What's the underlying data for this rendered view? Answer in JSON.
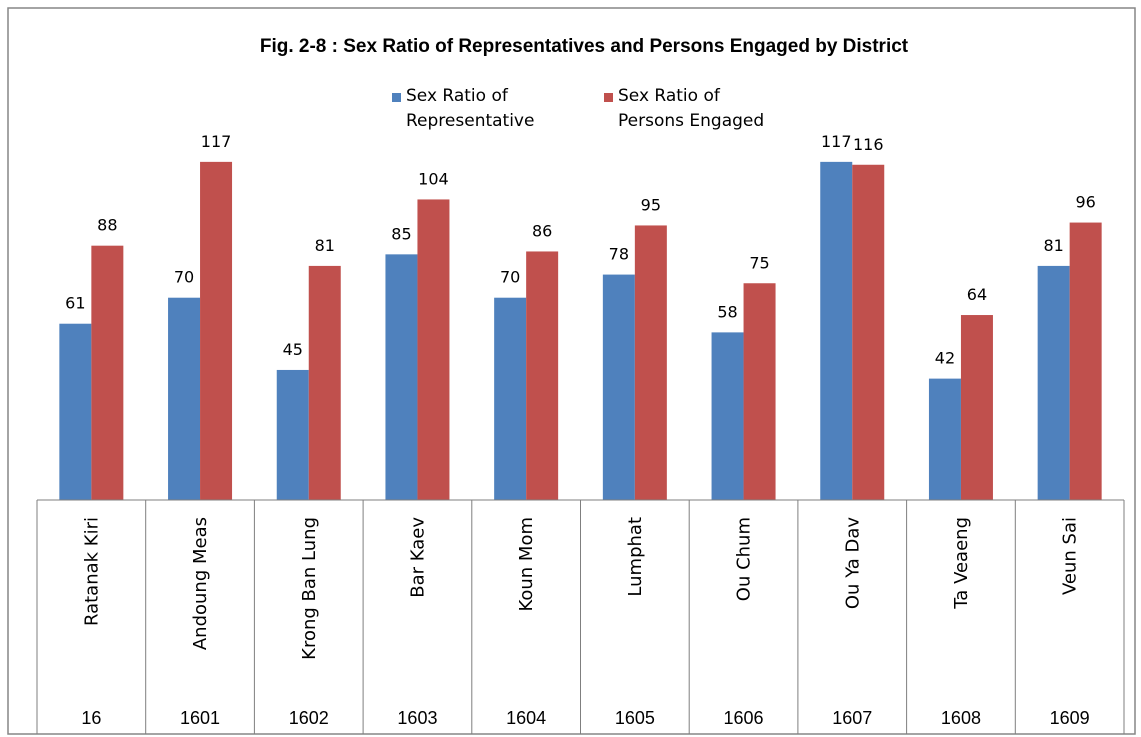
{
  "chart_data": {
    "type": "bar",
    "title": "Fig. 2-8 : Sex Ratio of Representatives and Persons Engaged by District",
    "legend_position": "top-center",
    "categories": [
      "Ratanak Kiri",
      "Andoung Meas",
      "Krong Ban Lung",
      "Bar Kaev",
      "Koun Mom",
      "Lumphat",
      "Ou Chum",
      "Ou Ya Dav",
      "Ta Veaeng",
      "Veun Sai"
    ],
    "category_codes": [
      "16",
      "1601",
      "1602",
      "1603",
      "1604",
      "1605",
      "1606",
      "1607",
      "1608",
      "1609"
    ],
    "series": [
      {
        "name": "Sex Ratio of Representative",
        "legend_lines": [
          "Sex Ratio of",
          "Representative"
        ],
        "color": "#4F81BD",
        "values": [
          61,
          70,
          45,
          85,
          70,
          78,
          58,
          117,
          42,
          81
        ]
      },
      {
        "name": "Sex Ratio of Persons Engaged",
        "legend_lines": [
          "Sex Ratio of",
          "Persons Engaged"
        ],
        "color": "#C0504D",
        "values": [
          88,
          117,
          81,
          104,
          86,
          95,
          75,
          116,
          64,
          96
        ]
      }
    ],
    "ylim": [
      0,
      117
    ],
    "grid": false
  },
  "colors": {
    "border": "#868686",
    "table_line": "#7f7f7f",
    "background": "#ffffff"
  }
}
